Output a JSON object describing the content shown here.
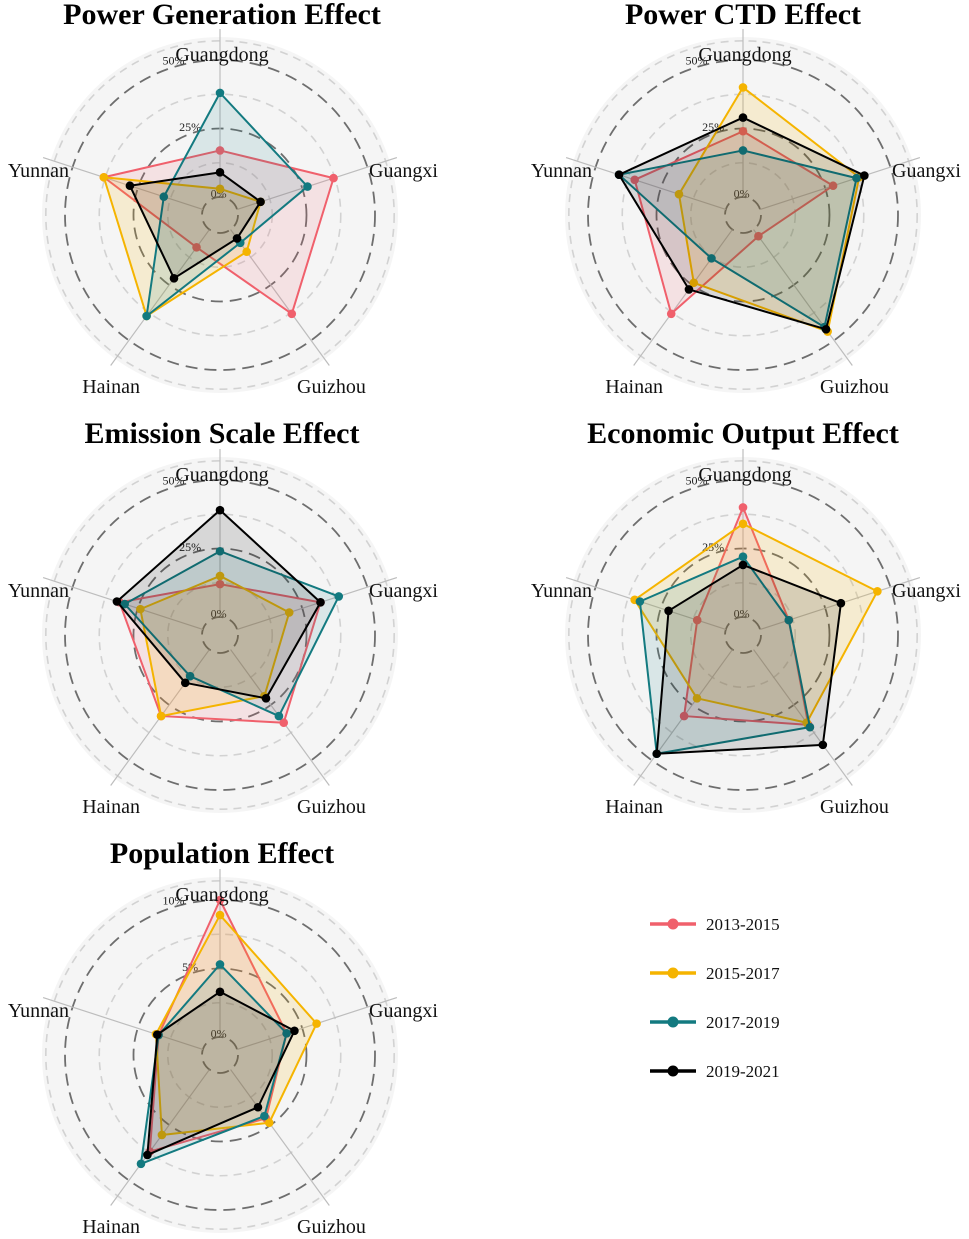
{
  "legend": [
    {
      "label": "2013-2015",
      "color": "#F0606C"
    },
    {
      "label": "2015-2017",
      "color": "#F5B400"
    },
    {
      "label": "2017-2019",
      "color": "#137A80"
    },
    {
      "label": "2019-2021",
      "color": "#000000"
    }
  ],
  "chart_data": [
    {
      "type": "radar",
      "title": "Power Generation Effect",
      "axes": [
        "Guangdong",
        "Guangxi",
        "Guizhou",
        "Hainan",
        "Yunnan"
      ],
      "rmax": 50,
      "ticks": [
        {
          "value": 0,
          "label": "0%"
        },
        {
          "value": 25,
          "label": "25%"
        },
        {
          "value": 50,
          "label": "50%"
        }
      ],
      "series": [
        {
          "name": "2013-2015",
          "values": [
            17,
            37,
            38,
            8,
            38
          ]
        },
        {
          "name": "2015-2017",
          "values": [
            3,
            9,
            10,
            39,
            38
          ]
        },
        {
          "name": "2017-2019",
          "values": [
            38,
            27,
            6,
            39,
            15
          ]
        },
        {
          "name": "2019-2021",
          "values": [
            9,
            9,
            4,
            22,
            28
          ]
        }
      ]
    },
    {
      "type": "radar",
      "title": "Power CTD Effect",
      "axes": [
        "Guangdong",
        "Guangxi",
        "Guizhou",
        "Hainan",
        "Yunnan"
      ],
      "rmax": 50,
      "ticks": [
        {
          "value": 0,
          "label": "0%"
        },
        {
          "value": 25,
          "label": "25%"
        },
        {
          "value": 50,
          "label": "50%"
        }
      ],
      "series": [
        {
          "name": "2013-2015",
          "values": [
            24,
            28,
            3,
            38,
            35
          ]
        },
        {
          "name": "2015-2017",
          "values": [
            40,
            38,
            46,
            24,
            18
          ]
        },
        {
          "name": "2017-2019",
          "values": [
            17,
            37,
            44,
            13,
            41
          ]
        },
        {
          "name": "2019-2021",
          "values": [
            29,
            40,
            45,
            27,
            41
          ]
        }
      ]
    },
    {
      "type": "radar",
      "title": "Emission Scale Effect",
      "axes": [
        "Guangdong",
        "Guangxi",
        "Guizhou",
        "Hainan",
        "Yunnan"
      ],
      "rmax": 50,
      "ticks": [
        {
          "value": 0,
          "label": "0%"
        },
        {
          "value": 25,
          "label": "25%"
        },
        {
          "value": 50,
          "label": "50%"
        }
      ],
      "series": [
        {
          "name": "2013-2015",
          "values": [
            12,
            32,
            33,
            30,
            32
          ]
        },
        {
          "name": "2015-2017",
          "values": [
            15,
            20,
            21,
            30,
            24
          ]
        },
        {
          "name": "2017-2019",
          "values": [
            24,
            39,
            30,
            12,
            30
          ]
        },
        {
          "name": "2019-2021",
          "values": [
            39,
            32,
            22,
            15,
            33
          ]
        }
      ]
    },
    {
      "type": "radar",
      "title": "Economic Output Effect",
      "axes": [
        "Guangdong",
        "Guangxi",
        "Guizhou",
        "Hainan",
        "Yunnan"
      ],
      "rmax": 50,
      "ticks": [
        {
          "value": 0,
          "label": "0%"
        },
        {
          "value": 25,
          "label": "25%"
        },
        {
          "value": 50,
          "label": "50%"
        }
      ],
      "series": [
        {
          "name": "2013-2015",
          "values": [
            40,
            11,
            34,
            30,
            11
          ]
        },
        {
          "name": "2015-2017",
          "values": [
            34,
            45,
            33,
            22,
            35
          ]
        },
        {
          "name": "2017-2019",
          "values": [
            22,
            11,
            35,
            47,
            33
          ]
        },
        {
          "name": "2019-2021",
          "values": [
            19,
            31,
            43,
            47,
            22
          ]
        }
      ]
    },
    {
      "type": "radar",
      "title": "Population Effect",
      "axes": [
        "Guangdong",
        "Guangxi",
        "Guizhou",
        "Hainan",
        "Yunnan"
      ],
      "rmax": 10,
      "ticks": [
        {
          "value": 0,
          "label": "0%"
        },
        {
          "value": 5,
          "label": "5%"
        },
        {
          "value": 10,
          "label": "10%"
        }
      ],
      "series": [
        {
          "name": "2013-2015",
          "values": [
            10,
            3.8,
            4.4,
            7.4,
            3.4
          ]
        },
        {
          "name": "2015-2017",
          "values": [
            8.9,
            6.1,
            4.8,
            5.9,
            3.6
          ]
        },
        {
          "name": "2017-2019",
          "values": [
            5.3,
            3.8,
            4.2,
            8.5,
            3.4
          ]
        },
        {
          "name": "2019-2021",
          "values": [
            3.3,
            4.4,
            3.4,
            7.7,
            3.5
          ]
        }
      ]
    }
  ]
}
